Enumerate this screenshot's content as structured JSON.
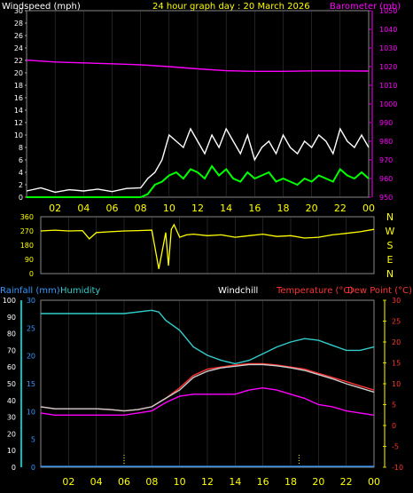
{
  "colors": {
    "white": "#ffffff",
    "yellow": "#ffff00",
    "magenta": "#ff00ff",
    "green": "#00ff00",
    "cyan": "#00ffff",
    "lightblue": "#3399ff",
    "teal": "#33cccc",
    "red": "#ff3333",
    "grid": "#666666"
  },
  "chart_data": [
    {
      "type": "line",
      "title": "24 hour graph day : 20 March 2026",
      "ylabel_left": "Windspeed (mph)",
      "ylabel_right": "Barometer (mb)",
      "xticks": [
        "02",
        "04",
        "06",
        "08",
        "10",
        "12",
        "14",
        "16",
        "18",
        "20",
        "22",
        "00"
      ],
      "left_ticks": [
        "30",
        "28",
        "26",
        "24",
        "22",
        "20",
        "18",
        "16",
        "14",
        "12",
        "10",
        "8",
        "6",
        "4",
        "2",
        "0"
      ],
      "right_ticks": [
        "1050",
        "1040",
        "1030",
        "1020",
        "1010",
        "1000",
        "990",
        "980",
        "970",
        "960",
        "950"
      ],
      "ylim_left": [
        0,
        30
      ],
      "ylim_right": [
        950,
        1050
      ],
      "series": [
        {
          "color": "#ff00ff",
          "axis": "right",
          "x": [
            0,
            2,
            4,
            6,
            8,
            10,
            12,
            14,
            16,
            18,
            20,
            22,
            24
          ],
          "y": [
            1023.5,
            1022.5,
            1022,
            1021.5,
            1021,
            1020,
            1018.8,
            1017.8,
            1017.5,
            1017.5,
            1017.7,
            1017.7,
            1017.6
          ]
        },
        {
          "color": "#ffffff",
          "axis": "left",
          "x": [
            0,
            1,
            2,
            3,
            4,
            5,
            6,
            7,
            8,
            8.5,
            9,
            9.5,
            10,
            10.5,
            11,
            11.5,
            12,
            12.5,
            13,
            13.5,
            14,
            14.5,
            15,
            15.5,
            16,
            16.5,
            17,
            17.5,
            18,
            18.5,
            19,
            19.5,
            20,
            20.5,
            21,
            21.5,
            22,
            22.5,
            23,
            23.5,
            24
          ],
          "y": [
            1,
            1.5,
            0.8,
            1.2,
            1,
            1.3,
            0.9,
            1.4,
            1.5,
            3,
            4,
            6,
            10,
            9,
            8,
            11,
            9,
            7,
            10,
            8,
            11,
            9,
            7,
            10,
            6,
            8,
            9,
            7,
            10,
            8,
            7,
            9,
            8,
            10,
            9,
            7,
            11,
            9,
            8,
            10,
            8
          ]
        },
        {
          "color": "#00ff00",
          "axis": "left",
          "x": [
            0,
            1,
            2,
            3,
            4,
            5,
            6,
            7,
            8,
            8.5,
            9,
            9.5,
            10,
            10.5,
            11,
            11.5,
            12,
            12.5,
            13,
            13.5,
            14,
            14.5,
            15,
            15.5,
            16,
            16.5,
            17,
            17.5,
            18,
            18.5,
            19,
            19.5,
            20,
            20.5,
            21,
            21.5,
            22,
            22.5,
            23,
            23.5,
            24
          ],
          "y": [
            0,
            0,
            0,
            0,
            0,
            0,
            0,
            0,
            0,
            0.5,
            2,
            2.5,
            3.5,
            4,
            3,
            4.5,
            4,
            3,
            5,
            3.5,
            4.5,
            3,
            2.5,
            4,
            3,
            3.5,
            4,
            2.5,
            3,
            2.5,
            2,
            3,
            2.5,
            3.5,
            3,
            2.5,
            4.5,
            3.5,
            3,
            4,
            3
          ]
        }
      ]
    },
    {
      "type": "scatter",
      "right_labels": [
        "N",
        "W",
        "S",
        "E",
        "N"
      ],
      "left_ticks": [
        "360",
        "270",
        "180",
        "90",
        "0"
      ],
      "ylim": [
        0,
        360
      ],
      "xticks": [
        "02",
        "04",
        "06",
        "08",
        "10",
        "12",
        "14",
        "16",
        "18",
        "20",
        "22",
        "00"
      ],
      "series": [
        {
          "color": "#ffff00",
          "x": [
            0,
            1,
            2,
            3,
            3.5,
            4,
            5,
            6,
            7,
            8,
            8.5,
            9,
            9.2,
            9.4,
            9.6,
            10,
            10.5,
            11,
            12,
            13,
            14,
            15,
            16,
            17,
            18,
            19,
            20,
            21,
            22,
            23,
            24
          ],
          "y": [
            270,
            275,
            270,
            272,
            220,
            260,
            265,
            270,
            272,
            275,
            30,
            260,
            50,
            280,
            310,
            230,
            245,
            250,
            240,
            245,
            230,
            240,
            250,
            235,
            240,
            225,
            230,
            245,
            255,
            265,
            280
          ]
        }
      ]
    },
    {
      "type": "line",
      "ylabel_left": "Rainfall (mm)",
      "ylabel_left2": "Humidity",
      "label_windchill": "Windchill",
      "ylabel_right": "Temperature (°C)",
      "ylabel_right2": "Dew Point (°C)",
      "hum_ticks": [
        "100",
        "90",
        "80",
        "70",
        "60",
        "50",
        "40",
        "30",
        "20",
        "10",
        "0"
      ],
      "rain_ticks": [
        "30",
        "25",
        "20",
        "15",
        "10",
        "5",
        "0"
      ],
      "temp_ticks": [
        "30",
        "25",
        "20",
        "15",
        "10",
        "5",
        "0",
        "-5",
        "-10"
      ],
      "xticks": [
        "02",
        "04",
        "06",
        "08",
        "10",
        "12",
        "14",
        "16",
        "18",
        "20",
        "22",
        "00"
      ],
      "ylim_hum": [
        0,
        100
      ],
      "ylim_temp": [
        -10,
        30
      ],
      "series": [
        {
          "color": "#33cccc",
          "axis": "hum",
          "x": [
            0,
            2,
            4,
            6,
            8,
            8.5,
            9,
            10,
            11,
            12,
            13,
            14,
            15,
            16,
            17,
            18,
            19,
            20,
            21,
            22,
            23,
            24
          ],
          "y": [
            92,
            92,
            92,
            92,
            94,
            93,
            88,
            82,
            72,
            67,
            64,
            62,
            64,
            68,
            72,
            75,
            77,
            76,
            73,
            70,
            70,
            72
          ]
        },
        {
          "color": "#ff3333",
          "axis": "temp",
          "x": [
            0,
            1,
            2,
            3,
            4,
            5,
            6,
            7,
            8,
            9,
            10,
            11,
            12,
            13,
            14,
            15,
            16,
            17,
            18,
            19,
            20,
            21,
            22,
            23,
            24
          ],
          "y": [
            4.5,
            4,
            4,
            4,
            4,
            3.8,
            3.5,
            3.8,
            4.5,
            6.5,
            9,
            12,
            13.5,
            14,
            14.5,
            14.8,
            14.8,
            14.5,
            14,
            13.5,
            12.5,
            11.5,
            10.5,
            9.5,
            8.5
          ]
        },
        {
          "color": "#cccccc",
          "axis": "temp",
          "x": [
            0,
            1,
            2,
            3,
            4,
            5,
            6,
            7,
            8,
            9,
            10,
            11,
            12,
            13,
            14,
            15,
            16,
            17,
            18,
            19,
            20,
            21,
            22,
            23,
            24
          ],
          "y": [
            4.5,
            4,
            4,
            4,
            4,
            3.8,
            3.5,
            3.8,
            4.5,
            6.5,
            8.5,
            11.5,
            13,
            13.8,
            14.2,
            14.6,
            14.6,
            14.3,
            13.8,
            13.2,
            12.2,
            11.2,
            10,
            9,
            8
          ]
        },
        {
          "color": "#ff00ff",
          "axis": "temp",
          "x": [
            0,
            1,
            2,
            3,
            4,
            5,
            6,
            7,
            8,
            9,
            10,
            11,
            12,
            13,
            14,
            15,
            16,
            17,
            18,
            19,
            20,
            21,
            22,
            23,
            24
          ],
          "y": [
            3,
            2.5,
            2.5,
            2.5,
            2.5,
            2.5,
            2.5,
            3,
            3.5,
            5.5,
            7,
            7.5,
            7.5,
            7.5,
            7.5,
            8.5,
            9,
            8.5,
            7.5,
            6.5,
            5,
            4.5,
            3.5,
            3,
            2.5
          ]
        },
        {
          "color": "#3399ff",
          "axis": "hum",
          "x": [
            0,
            24
          ],
          "y": [
            0.5,
            0.5
          ]
        }
      ]
    }
  ]
}
